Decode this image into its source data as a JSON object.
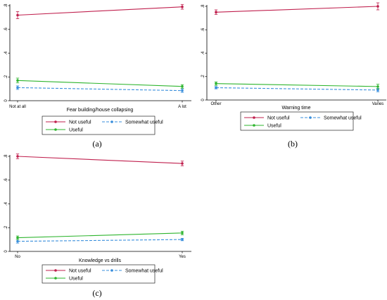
{
  "colors": {
    "not_useful": "#c0204e",
    "somewhat_useful": "#3a8fdc",
    "useful": "#2eb52e",
    "axis": "#000000"
  },
  "legend_labels": [
    "Not useful",
    "Somewhat useful",
    "Useful"
  ],
  "chart_data": [
    {
      "type": "line",
      "panel_label": "(a)",
      "xlabel": "Fear building/house collapsing",
      "categories": [
        "Not at all",
        "A lot"
      ],
      "ylim": [
        0,
        0.8
      ],
      "yticks": [
        0,
        0.2,
        0.4,
        0.6,
        0.8
      ],
      "ytick_labels": [
        "0",
        ".2",
        ".4",
        ".6",
        ".8"
      ],
      "grid": false,
      "legend_position": "bottom",
      "series": [
        {
          "name": "Not useful",
          "values": [
            0.72,
            0.79
          ],
          "ci_low": [
            0.69,
            0.77
          ],
          "ci_high": [
            0.75,
            0.81
          ]
        },
        {
          "name": "Somewhat useful",
          "values": [
            0.11,
            0.085
          ],
          "ci_low": [
            0.095,
            0.07
          ],
          "ci_high": [
            0.125,
            0.1
          ]
        },
        {
          "name": "Useful",
          "values": [
            0.17,
            0.12
          ],
          "ci_low": [
            0.15,
            0.105
          ],
          "ci_high": [
            0.19,
            0.135
          ]
        }
      ]
    },
    {
      "type": "line",
      "panel_label": "(b)",
      "xlabel": "Warning time",
      "categories": [
        "Other",
        "Varies"
      ],
      "ylim": [
        0,
        0.8
      ],
      "yticks": [
        0,
        0.2,
        0.4,
        0.6,
        0.8
      ],
      "ytick_labels": [
        "0",
        ".2",
        ".4",
        ".6",
        ".8"
      ],
      "grid": false,
      "legend_position": "bottom",
      "series": [
        {
          "name": "Not useful",
          "values": [
            0.75,
            0.8
          ],
          "ci_low": [
            0.73,
            0.77
          ],
          "ci_high": [
            0.77,
            0.83
          ]
        },
        {
          "name": "Somewhat useful",
          "values": [
            0.105,
            0.085
          ],
          "ci_low": [
            0.095,
            0.07
          ],
          "ci_high": [
            0.115,
            0.1
          ]
        },
        {
          "name": "Useful",
          "values": [
            0.14,
            0.115
          ],
          "ci_low": [
            0.125,
            0.095
          ],
          "ci_high": [
            0.155,
            0.135
          ]
        }
      ]
    },
    {
      "type": "line",
      "panel_label": "(c)",
      "xlabel": "Knowledge vs drills",
      "categories": [
        "No",
        "Yes"
      ],
      "ylim": [
        0,
        0.8
      ],
      "yticks": [
        0,
        0.2,
        0.4,
        0.6,
        0.8
      ],
      "ytick_labels": [
        "0",
        ".2",
        ".4",
        ".6",
        ".8"
      ],
      "grid": false,
      "legend_position": "bottom",
      "series": [
        {
          "name": "Not useful",
          "values": [
            0.8,
            0.74
          ],
          "ci_low": [
            0.78,
            0.72
          ],
          "ci_high": [
            0.82,
            0.76
          ]
        },
        {
          "name": "Somewhat useful",
          "values": [
            0.085,
            0.1
          ],
          "ci_low": [
            0.07,
            0.09
          ],
          "ci_high": [
            0.1,
            0.11
          ]
        },
        {
          "name": "Useful",
          "values": [
            0.115,
            0.155
          ],
          "ci_low": [
            0.1,
            0.14
          ],
          "ci_high": [
            0.13,
            0.17
          ]
        }
      ]
    }
  ]
}
